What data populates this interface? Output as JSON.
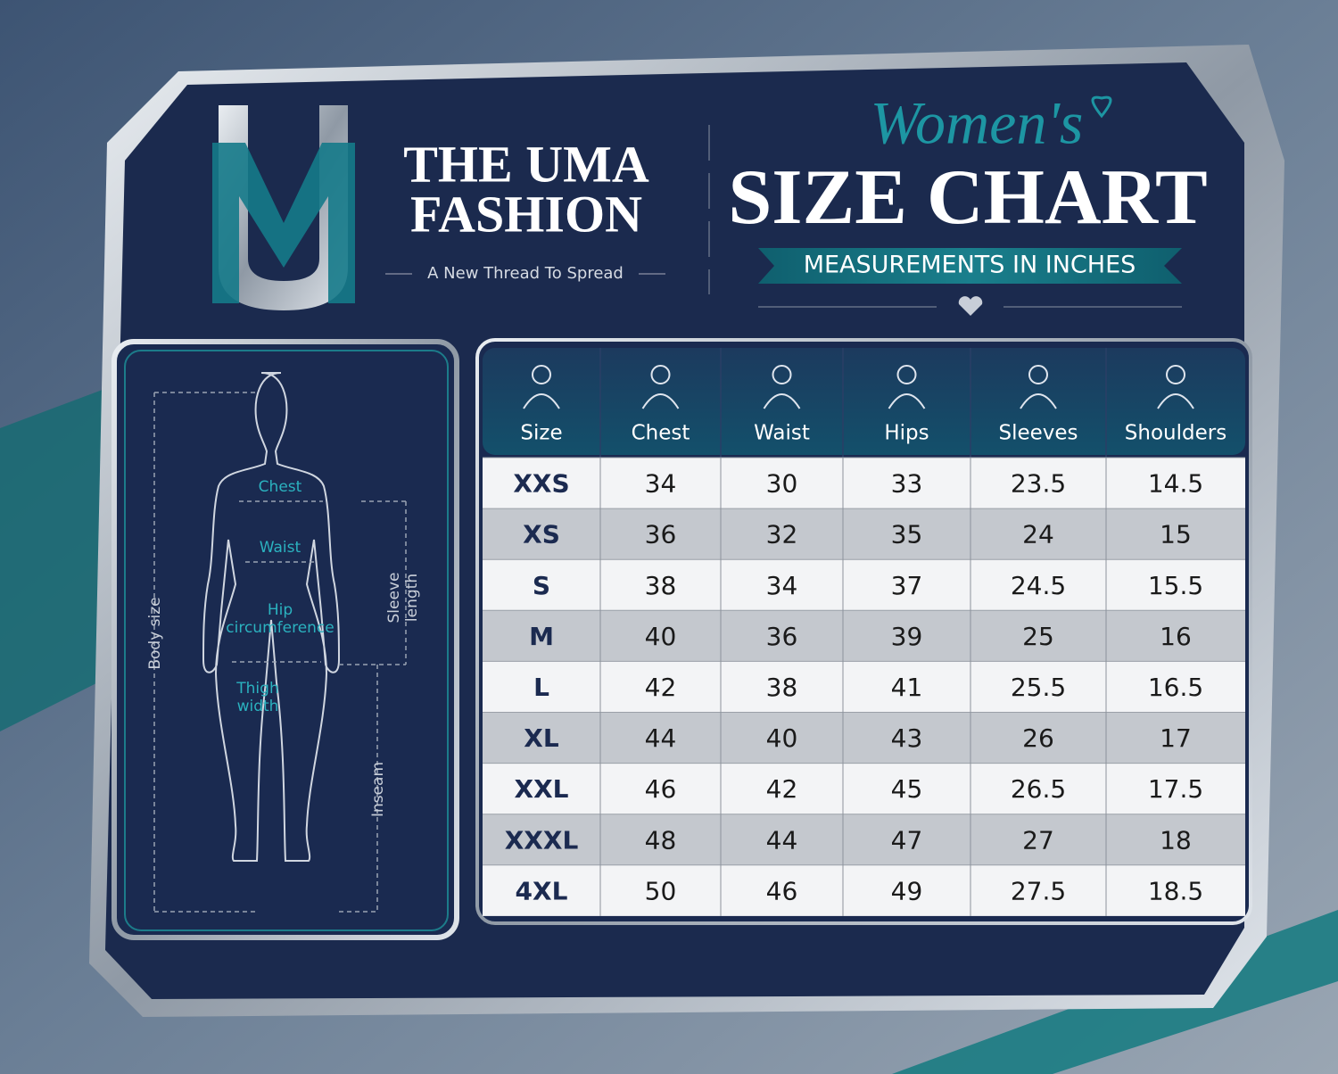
{
  "brand": {
    "name_lines": [
      "THE UMA",
      "FASHION"
    ],
    "tagline": "A New Thread To Spread"
  },
  "title": {
    "script": "Women's",
    "main": "SIZE CHART",
    "subtitle": "MEASUREMENTS IN INCHES"
  },
  "diagram": {
    "labels": [
      "Chest",
      "Waist",
      "Hip circumference",
      "Thigh width",
      "Sleeve length",
      "Body size",
      "Inseam"
    ]
  },
  "table": {
    "headers": [
      "Size",
      "Chest",
      "Waist",
      "Hips",
      "Sleeves",
      "Shoulders"
    ],
    "rows": [
      [
        "XXS",
        "34",
        "30",
        "33",
        "23.5",
        "14.5"
      ],
      [
        "XS",
        "36",
        "32",
        "35",
        "24",
        "15"
      ],
      [
        "S",
        "38",
        "34",
        "37",
        "24.5",
        "15.5"
      ],
      [
        "M",
        "40",
        "36",
        "39",
        "25",
        "16"
      ],
      [
        "L",
        "42",
        "38",
        "41",
        "25.5",
        "16.5"
      ],
      [
        "XL",
        "44",
        "40",
        "43",
        "26",
        "17"
      ],
      [
        "XXL",
        "46",
        "42",
        "45",
        "26.5",
        "17.5"
      ],
      [
        "XXXL",
        "48",
        "44",
        "47",
        "27",
        "18"
      ],
      [
        "4XL",
        "50",
        "46",
        "49",
        "27.5",
        "18.5"
      ]
    ]
  }
}
